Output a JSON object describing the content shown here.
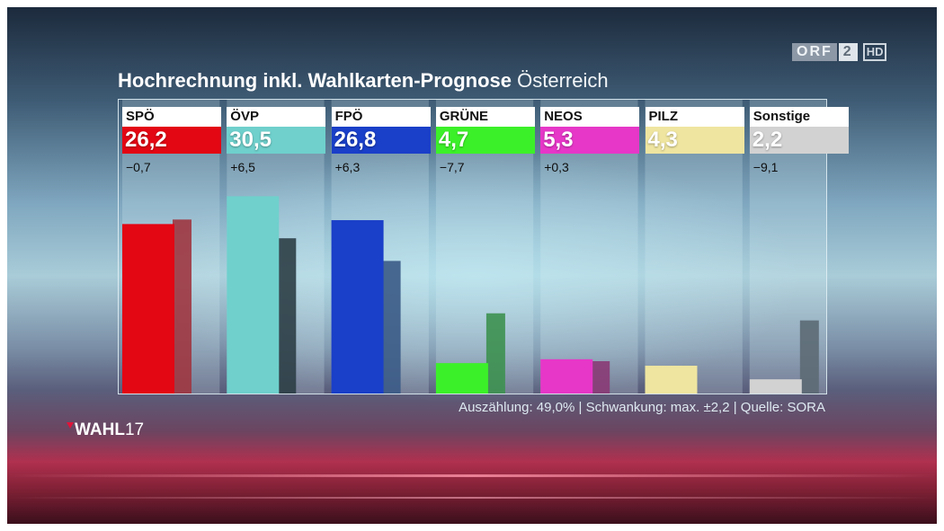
{
  "title": {
    "bold": "Hochrechnung inkl. Wahlkarten-Prognose",
    "region": "Österreich"
  },
  "brand": {
    "orf": "ORF",
    "channel": "2",
    "hd": "HD"
  },
  "footer": "Auszählung: 49,0% | Schwankung: max. ±2,2 | Quelle: SORA",
  "wahl_logo": {
    "word": "WAHL",
    "year": "17"
  },
  "chart_data": {
    "type": "bar",
    "categories": [
      "SPÖ",
      "ÖVP",
      "FPÖ",
      "GRÜNE",
      "NEOS",
      "PILZ",
      "Sonstige"
    ],
    "value_labels": [
      "26,2",
      "30,5",
      "26,8",
      "4,7",
      "5,3",
      "4,3",
      "2,2"
    ],
    "change_labels": [
      "−0,7",
      "+6,5",
      "+6,3",
      "−7,7",
      "+0,3",
      "",
      "−9,1"
    ],
    "series": [
      {
        "values": [
          26.2,
          30.5,
          26.8,
          4.7,
          5.3,
          4.3,
          2.2
        ],
        "colors": [
          "#e30613",
          "#6fd0cc",
          "#1a3fc8",
          "#3cf029",
          "#e637c8",
          "#efe5a0",
          "#d2d2d2"
        ]
      },
      {
        "values": [
          26.9,
          24.0,
          20.5,
          12.4,
          5.0,
          null,
          11.3
        ],
        "colors": [
          "#9f3640",
          "#2c3e46",
          "#3a5a86",
          "#3d9150",
          "#8a3a75",
          "#cccccc",
          "#5c6a74"
        ]
      }
    ],
    "ylim": [
      0,
      32
    ]
  }
}
